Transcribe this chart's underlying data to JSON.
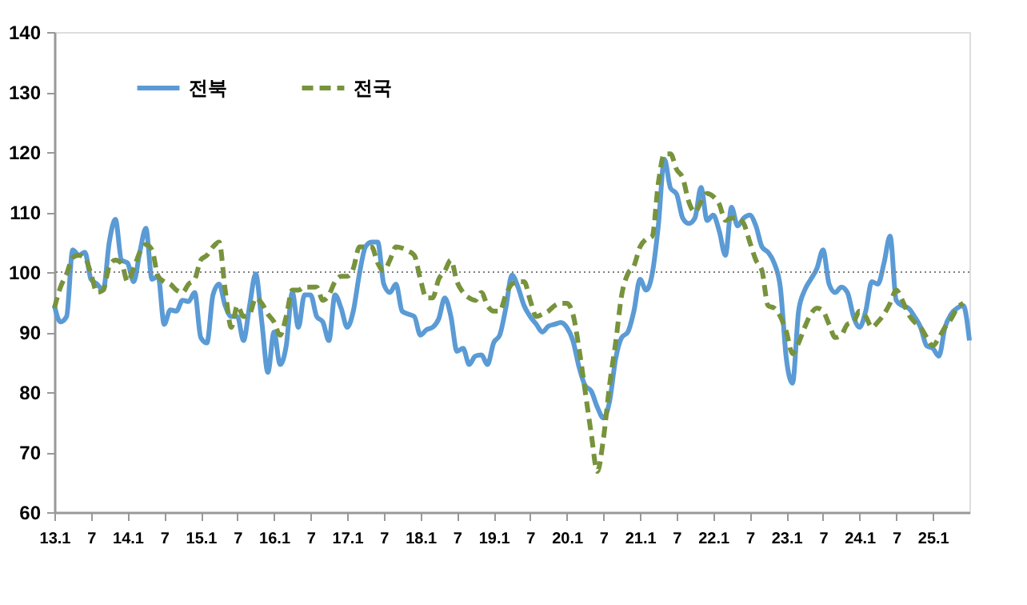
{
  "chart_data": {
    "type": "line",
    "categories": [
      "13.1",
      null,
      null,
      null,
      null,
      null,
      "7",
      null,
      null,
      null,
      null,
      null,
      "14.1",
      null,
      null,
      null,
      null,
      null,
      "7",
      null,
      null,
      null,
      null,
      null,
      "15.1",
      null,
      null,
      null,
      null,
      null,
      "7",
      null,
      null,
      null,
      null,
      null,
      "16.1",
      null,
      null,
      null,
      null,
      null,
      "7",
      null,
      null,
      null,
      null,
      null,
      "17.1",
      null,
      null,
      null,
      null,
      null,
      "7",
      null,
      null,
      null,
      null,
      null,
      "18.1",
      null,
      null,
      null,
      null,
      null,
      "7",
      null,
      null,
      null,
      null,
      null,
      "19.1",
      null,
      null,
      null,
      null,
      null,
      "7",
      null,
      null,
      null,
      null,
      null,
      "20.1",
      null,
      null,
      null,
      null,
      null,
      "7",
      null,
      null,
      null,
      null,
      null,
      "21.1",
      null,
      null,
      null,
      null,
      null,
      "7",
      null,
      null,
      null,
      null,
      null,
      "22.1",
      null,
      null,
      null,
      null,
      null,
      "7",
      null,
      null,
      null,
      null,
      null,
      "23.1",
      null,
      null,
      null,
      null,
      null,
      "7",
      null,
      null,
      null,
      null,
      null,
      "24.1",
      null,
      null,
      null,
      null,
      null,
      "7",
      null,
      null,
      null,
      null,
      null,
      "25.1",
      null,
      null,
      null,
      null,
      null,
      null
    ],
    "series": [
      {
        "name": "전북",
        "color": "#5b9bd5",
        "line_style": "solid",
        "values": [
          94.4,
          91.7,
          92.6,
          103.7,
          102.8,
          103.3,
          98.8,
          98,
          97,
          105,
          108.8,
          102,
          101.5,
          98.4,
          103.3,
          107.3,
          98.8,
          99.3,
          91.3,
          93.7,
          93.5,
          95.3,
          95.1,
          96.6,
          89.1,
          88.2,
          96.2,
          98,
          94.4,
          92.6,
          92.6,
          88.6,
          94.4,
          99.7,
          91.7,
          83.3,
          90,
          84.6,
          87.7,
          96.6,
          90.8,
          96.2,
          96.2,
          92.6,
          91.7,
          88.6,
          96.2,
          94,
          90.8,
          93.5,
          99.7,
          104.2,
          105,
          105,
          98,
          96.6,
          98,
          93.5,
          93,
          92.6,
          89.5,
          90.4,
          90.8,
          92.2,
          95.7,
          92.6,
          86.8,
          87.3,
          84.6,
          86,
          86.2,
          84.6,
          88.2,
          89.5,
          94,
          99.5,
          97.5,
          94.4,
          92.6,
          91.3,
          90,
          91,
          91.3,
          91.6,
          90.8,
          88.6,
          84.2,
          81.1,
          80.2,
          77.5,
          75.7,
          78.4,
          85.5,
          89.1,
          90,
          93.5,
          98.8,
          97,
          99.7,
          107.7,
          118.8,
          114,
          113,
          109,
          108.1,
          109,
          114.1,
          108.6,
          109.5,
          106.8,
          102.8,
          110.8,
          107.7,
          109,
          109.5,
          107.7,
          104.2,
          103.3,
          101.5,
          97.5,
          85.5,
          81.5,
          93.5,
          97,
          98.8,
          100.6,
          103.7,
          98,
          96.6,
          97.5,
          96.6,
          92.6,
          90.8,
          93.5,
          98.4,
          98,
          101.5,
          106,
          95.3,
          94.4,
          94,
          92.6,
          90.8,
          87.7,
          87.3,
          86,
          90.8,
          93,
          94,
          94.4,
          88.6
        ]
      },
      {
        "name": "전국",
        "color": "#77933c",
        "line_style": "dashed",
        "values": [
          94,
          97.5,
          99.7,
          102.4,
          102.8,
          102.4,
          99.7,
          96.6,
          97,
          101,
          102,
          101.5,
          98.4,
          100.6,
          103.3,
          104.6,
          103.7,
          99.3,
          98.4,
          98,
          97,
          96.6,
          98,
          98.8,
          102,
          102.8,
          104.2,
          105,
          97,
          90.8,
          94.4,
          92.6,
          93,
          95.7,
          94.8,
          93,
          91.7,
          89.5,
          92.6,
          97,
          97,
          97.5,
          97.5,
          97.5,
          95.3,
          96.2,
          98.4,
          99.3,
          99.3,
          100.6,
          104.2,
          104.2,
          104.2,
          101.5,
          100.2,
          102,
          104.2,
          104,
          103.5,
          102.8,
          98.8,
          95.7,
          95.7,
          98.8,
          100.2,
          102,
          98.4,
          96.6,
          95.7,
          95.3,
          96.6,
          94.4,
          93.5,
          93.5,
          96.2,
          98,
          98.4,
          98.4,
          95.3,
          92.6,
          93,
          93.5,
          94.4,
          94.8,
          94.8,
          93,
          87.3,
          80.2,
          73.1,
          66.8,
          72.2,
          81.1,
          88.2,
          96.2,
          99.7,
          101,
          104.2,
          105.5,
          106,
          114.8,
          119.7,
          119.7,
          117.1,
          115.7,
          111.7,
          110,
          111.7,
          113.1,
          112.6,
          111.3,
          108.6,
          109,
          109,
          108.1,
          105,
          102,
          100.2,
          94.4,
          94,
          92.6,
          90,
          86.4,
          88.2,
          90.8,
          93,
          94,
          93.5,
          91.3,
          89.1,
          89.5,
          91.3,
          91.7,
          93.5,
          92.6,
          90.8,
          91.7,
          93,
          94.8,
          97,
          95.3,
          93,
          91.7,
          90.8,
          89.1,
          87.7,
          89.1,
          90.8,
          92.2,
          94,
          94.8,
          null
        ]
      }
    ],
    "ylim": [
      60,
      140
    ],
    "yticks": [
      60,
      70,
      80,
      90,
      100,
      110,
      120,
      130,
      140
    ],
    "ref_lines": [
      {
        "axis": "y",
        "value": 100,
        "color": "#808080",
        "line_style": "dotted"
      }
    ],
    "grid": false,
    "legend": "top left"
  }
}
